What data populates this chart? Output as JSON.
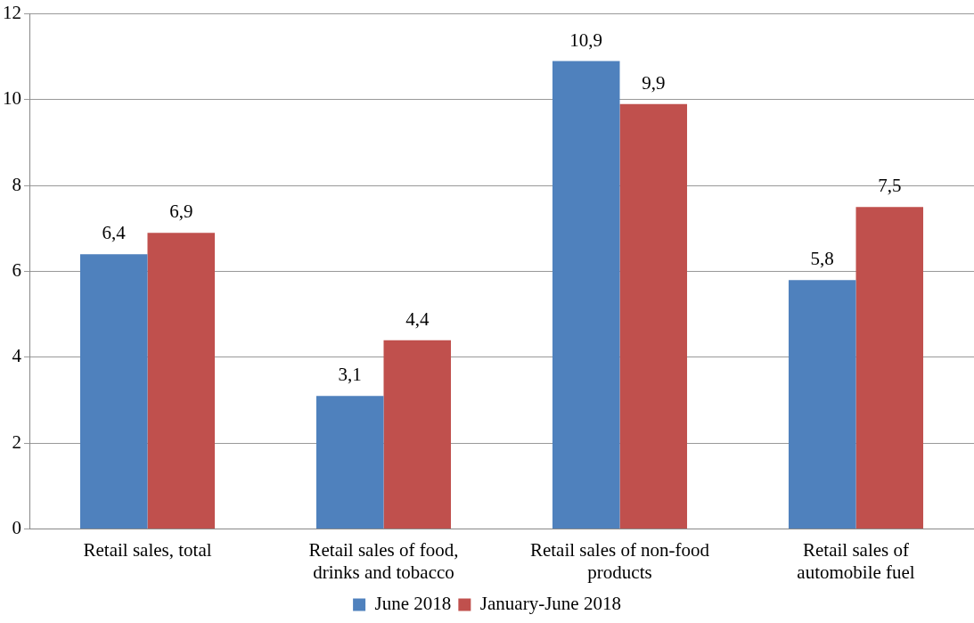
{
  "chart_data": {
    "type": "bar",
    "categories": [
      "Retail sales, total",
      "Retail sales of food, drinks and tobacco",
      "Retail sales of non-food products",
      "Retail sales of automobile fuel"
    ],
    "series": [
      {
        "name": "June 2018",
        "color": "#4f81bd",
        "values": [
          6.4,
          3.1,
          10.9,
          5.8
        ],
        "value_labels": [
          "6,4",
          "3,1",
          "10,9",
          "5,8"
        ]
      },
      {
        "name": "January-June 2018",
        "color": "#c0504d",
        "values": [
          6.9,
          4.4,
          9.9,
          7.5
        ],
        "value_labels": [
          "6,9",
          "4,4",
          "9,9",
          "7,5"
        ]
      }
    ],
    "ylim": [
      0,
      12
    ],
    "yticks": [
      0,
      2,
      4,
      6,
      8,
      10,
      12
    ],
    "grid": "y",
    "legend": "bottom"
  }
}
